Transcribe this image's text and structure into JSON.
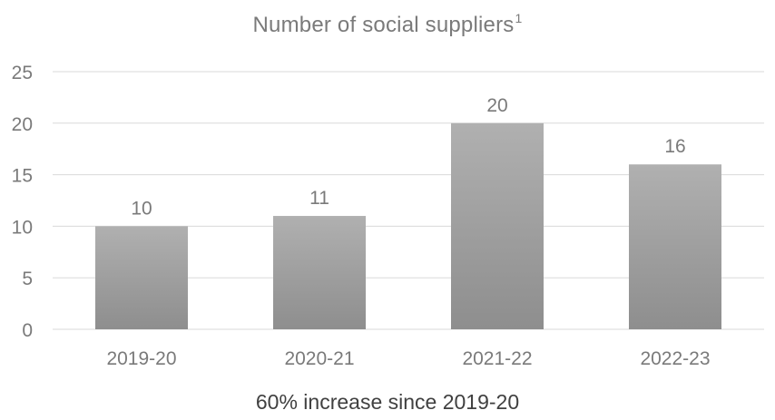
{
  "chart_data": {
    "type": "bar",
    "title": "Number of social suppliers",
    "title_superscript": "1",
    "categories": [
      "2019-20",
      "2020-21",
      "2021-22",
      "2022-23"
    ],
    "values": [
      10,
      11,
      20,
      16
    ],
    "data_labels": [
      "10",
      "11",
      "20",
      "16"
    ],
    "y_ticks": [
      0,
      5,
      10,
      15,
      20,
      25
    ],
    "ylim": [
      0,
      25
    ],
    "xlabel": "",
    "ylabel": "",
    "grid": true,
    "legend": "none",
    "bar_color_top": "#b0b0b0",
    "bar_color_bottom": "#8e8e8e"
  },
  "footer": {
    "note": "60% increase since 2019-20"
  }
}
